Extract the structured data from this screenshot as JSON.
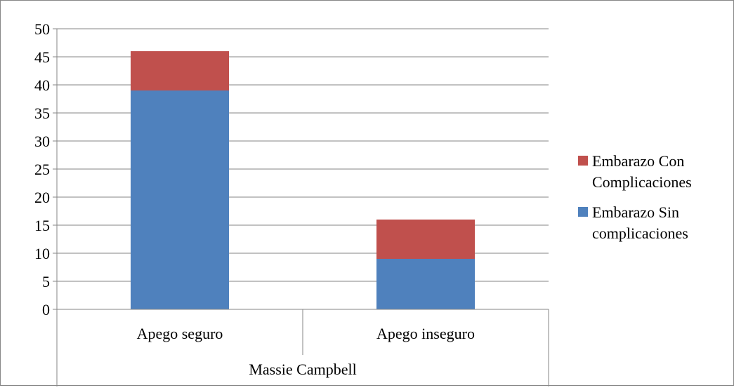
{
  "chart_data": {
    "type": "bar",
    "stacked": true,
    "categories": [
      "Apego seguro",
      "Apego inseguro"
    ],
    "group_label": "Massie Campbell",
    "series": [
      {
        "name": "Embarazo Sin complicaciones",
        "values": [
          39,
          9
        ],
        "color": "#4F81BD"
      },
      {
        "name": "Embarazo Con Complicaciones",
        "values": [
          7,
          7
        ],
        "color": "#C0504D"
      }
    ],
    "legend": [
      {
        "series": 1,
        "lines": [
          "Embarazo Con",
          "Complicaciones"
        ]
      },
      {
        "series": 0,
        "lines": [
          "Embarazo Sin",
          "complicaciones"
        ]
      }
    ],
    "yticks": [
      "0",
      "5",
      "10",
      "15",
      "20",
      "25",
      "30",
      "35",
      "40",
      "45",
      "50"
    ],
    "ylim": [
      0,
      50
    ],
    "grid": true,
    "legend_position": "right",
    "title": "",
    "xlabel": "",
    "ylabel": ""
  }
}
